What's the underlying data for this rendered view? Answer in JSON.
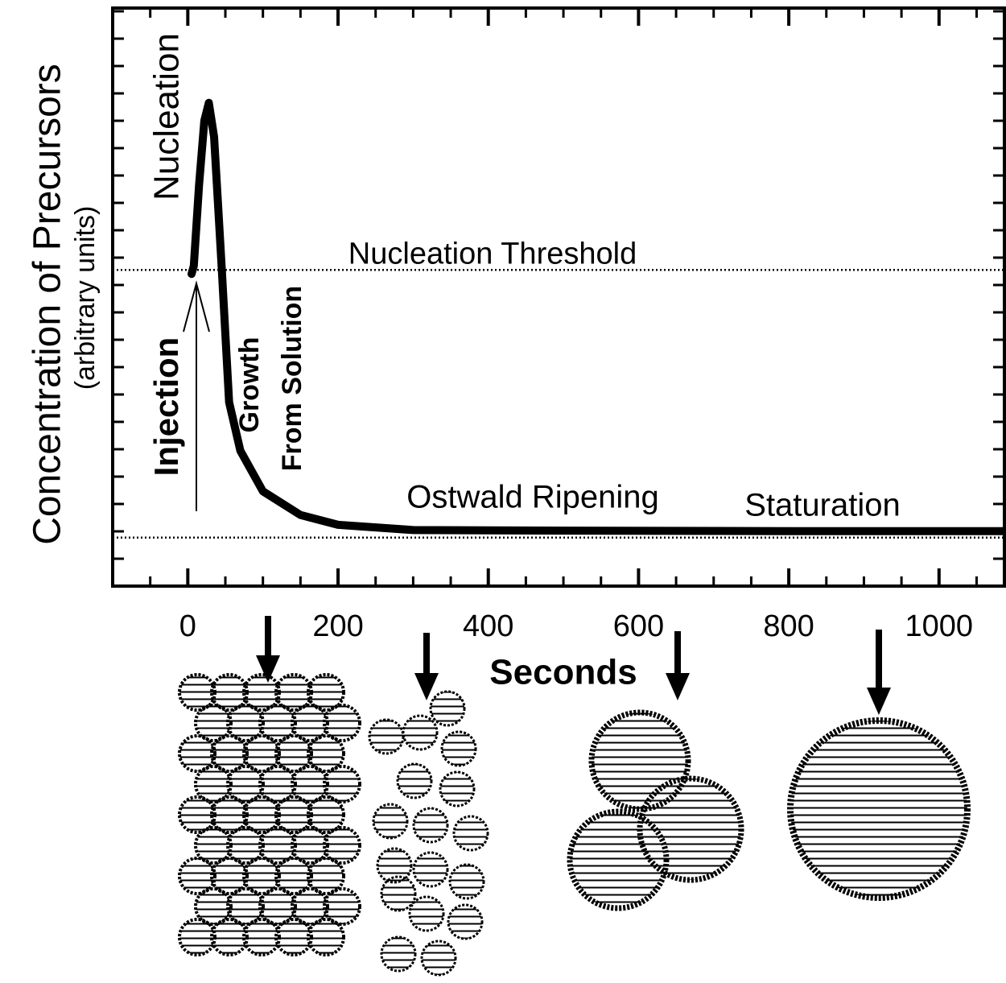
{
  "chart_data": {
    "type": "line",
    "ylabel": "Concentration of Precursors",
    "ylabel_sub": "(arbitrary units)",
    "xlabel": "Seconds",
    "xlim": [
      -100,
      1087
    ],
    "ylim": [
      0,
      10
    ],
    "xticks": [
      0,
      200,
      400,
      600,
      800,
      1000
    ],
    "x": [
      5,
      8,
      15,
      22,
      28,
      35,
      40,
      45,
      55,
      70,
      100,
      150,
      200,
      300,
      500,
      800,
      1085
    ],
    "series": [
      {
        "color": "#000000",
        "values": [
          5.4,
          5.54,
          6.94,
          8.05,
          8.36,
          7.77,
          6.66,
          5.54,
          3.18,
          2.34,
          1.64,
          1.23,
          1.06,
          0.97,
          0.96,
          0.95,
          0.95
        ]
      }
    ],
    "hlines": [
      {
        "label": "Nucleation Threshold",
        "y": 5.47
      },
      {
        "y": 0.84
      }
    ],
    "annotations": [
      "Nucleation",
      "Injection",
      "Growth",
      "From Solution",
      "Ostwald Ripening",
      "Staturation"
    ]
  }
}
